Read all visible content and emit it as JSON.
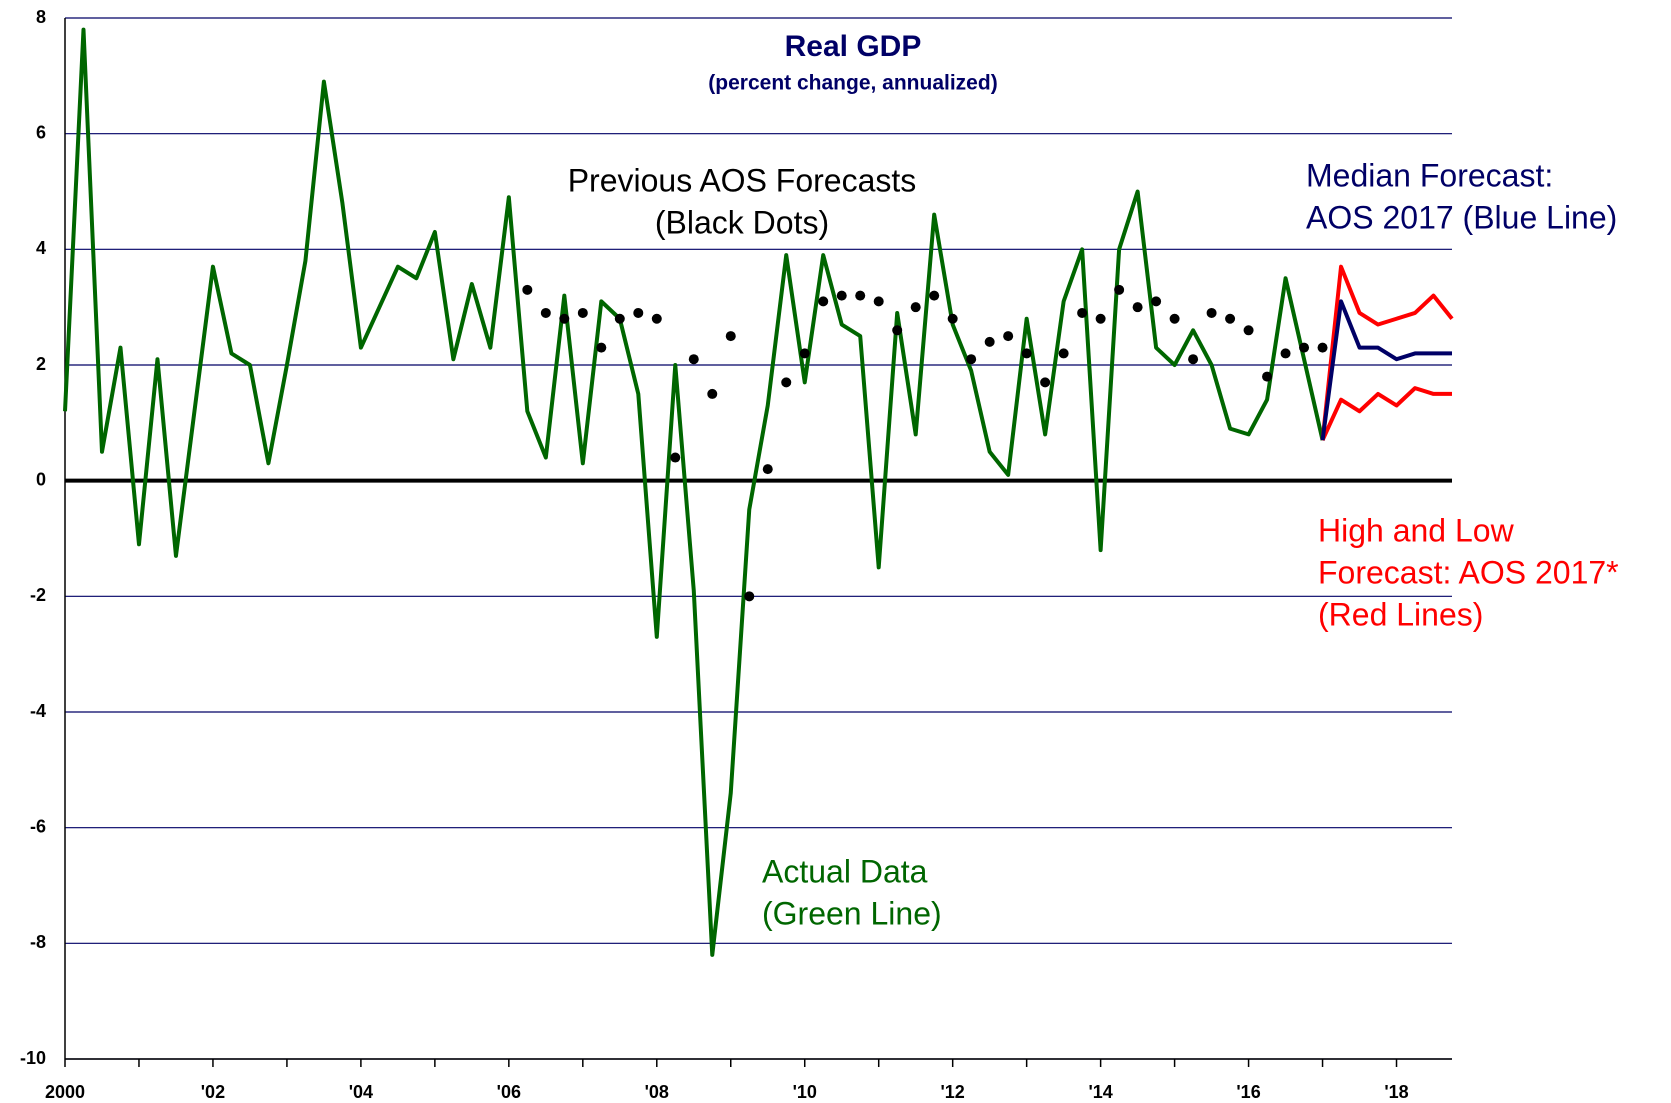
{
  "chart_data": {
    "type": "line",
    "title": "Real GDP",
    "subtitle": "(percent change, annualized)",
    "title_color": "#000066",
    "x": [
      2000,
      2000.25,
      2000.5,
      2000.75,
      2001,
      2001.25,
      2001.5,
      2001.75,
      2002,
      2002.25,
      2002.5,
      2002.75,
      2003,
      2003.25,
      2003.5,
      2003.75,
      2004,
      2004.25,
      2004.5,
      2004.75,
      2005,
      2005.25,
      2005.5,
      2005.75,
      2006,
      2006.25,
      2006.5,
      2006.75,
      2007,
      2007.25,
      2007.5,
      2007.75,
      2008,
      2008.25,
      2008.5,
      2008.75,
      2009,
      2009.25,
      2009.5,
      2009.75,
      2010,
      2010.25,
      2010.5,
      2010.75,
      2011,
      2011.25,
      2011.5,
      2011.75,
      2012,
      2012.25,
      2012.5,
      2012.75,
      2013,
      2013.25,
      2013.5,
      2013.75,
      2014,
      2014.25,
      2014.5,
      2014.75,
      2015,
      2015.25,
      2015.5,
      2015.75,
      2016,
      2016.25,
      2016.5,
      2016.75,
      2017,
      2017.25,
      2017.5,
      2017.75,
      2018,
      2018.25,
      2018.5,
      2018.75
    ],
    "series": [
      {
        "color": "#006600",
        "mode": "lines",
        "values": [
          1.2,
          7.8,
          0.5,
          2.3,
          -1.1,
          2.1,
          -1.3,
          1.2,
          3.7,
          2.2,
          2.0,
          0.3,
          2.0,
          3.8,
          6.9,
          4.8,
          2.3,
          3.0,
          3.7,
          3.5,
          4.3,
          2.1,
          3.4,
          2.3,
          4.9,
          1.2,
          0.4,
          3.2,
          0.3,
          3.1,
          2.8,
          1.5,
          -2.7,
          2.0,
          -1.9,
          -8.2,
          -5.4,
          -0.5,
          1.3,
          3.9,
          1.7,
          3.9,
          2.7,
          2.5,
          -1.5,
          2.9,
          0.8,
          4.6,
          2.7,
          1.9,
          0.5,
          0.1,
          2.8,
          0.8,
          3.1,
          4.0,
          -1.2,
          4.0,
          5.0,
          2.3,
          2.0,
          2.6,
          2.0,
          0.9,
          0.8,
          1.4,
          3.5,
          2.1,
          0.7,
          null,
          null,
          null,
          null,
          null,
          null,
          null
        ]
      },
      {
        "color": "#000000",
        "mode": "markers",
        "values": [
          null,
          null,
          null,
          null,
          null,
          null,
          null,
          null,
          null,
          null,
          null,
          null,
          null,
          null,
          null,
          null,
          null,
          null,
          null,
          null,
          null,
          null,
          null,
          null,
          null,
          3.3,
          2.9,
          2.8,
          2.9,
          2.3,
          2.8,
          2.9,
          2.8,
          0.4,
          2.1,
          1.5,
          2.5,
          -2.0,
          0.2,
          1.7,
          2.2,
          3.1,
          3.2,
          3.2,
          3.1,
          2.6,
          3.0,
          3.2,
          2.8,
          2.1,
          2.4,
          2.5,
          2.2,
          1.7,
          2.2,
          2.9,
          2.8,
          3.3,
          3.0,
          3.1,
          2.8,
          2.1,
          2.9,
          2.8,
          2.6,
          1.8,
          2.2,
          2.3,
          2.3,
          null,
          null,
          null,
          null,
          null,
          null,
          null
        ]
      },
      {
        "color": "#ff0000",
        "mode": "lines",
        "values": [
          null,
          null,
          null,
          null,
          null,
          null,
          null,
          null,
          null,
          null,
          null,
          null,
          null,
          null,
          null,
          null,
          null,
          null,
          null,
          null,
          null,
          null,
          null,
          null,
          null,
          null,
          null,
          null,
          null,
          null,
          null,
          null,
          null,
          null,
          null,
          null,
          null,
          null,
          null,
          null,
          null,
          null,
          null,
          null,
          null,
          null,
          null,
          null,
          null,
          null,
          null,
          null,
          null,
          null,
          null,
          null,
          null,
          null,
          null,
          null,
          null,
          null,
          null,
          null,
          null,
          null,
          null,
          null,
          0.7,
          3.7,
          2.9,
          2.7,
          2.8,
          2.9,
          3.2,
          2.8
        ]
      },
      {
        "color": "#ff0000",
        "mode": "lines",
        "values": [
          null,
          null,
          null,
          null,
          null,
          null,
          null,
          null,
          null,
          null,
          null,
          null,
          null,
          null,
          null,
          null,
          null,
          null,
          null,
          null,
          null,
          null,
          null,
          null,
          null,
          null,
          null,
          null,
          null,
          null,
          null,
          null,
          null,
          null,
          null,
          null,
          null,
          null,
          null,
          null,
          null,
          null,
          null,
          null,
          null,
          null,
          null,
          null,
          null,
          null,
          null,
          null,
          null,
          null,
          null,
          null,
          null,
          null,
          null,
          null,
          null,
          null,
          null,
          null,
          null,
          null,
          null,
          null,
          0.7,
          1.4,
          1.2,
          1.5,
          1.3,
          1.6,
          1.5,
          1.5
        ]
      },
      {
        "color": "#000066",
        "mode": "lines",
        "values": [
          null,
          null,
          null,
          null,
          null,
          null,
          null,
          null,
          null,
          null,
          null,
          null,
          null,
          null,
          null,
          null,
          null,
          null,
          null,
          null,
          null,
          null,
          null,
          null,
          null,
          null,
          null,
          null,
          null,
          null,
          null,
          null,
          null,
          null,
          null,
          null,
          null,
          null,
          null,
          null,
          null,
          null,
          null,
          null,
          null,
          null,
          null,
          null,
          null,
          null,
          null,
          null,
          null,
          null,
          null,
          null,
          null,
          null,
          null,
          null,
          null,
          null,
          null,
          null,
          null,
          null,
          null,
          null,
          0.7,
          3.1,
          2.3,
          2.3,
          2.1,
          2.2,
          2.2,
          2.2
        ]
      }
    ],
    "xlim": [
      2000,
      2018.75
    ],
    "xticks": [
      {
        "value": 2000,
        "label": "2000"
      },
      {
        "value": 2002,
        "label": "'02"
      },
      {
        "value": 2004,
        "label": "'04"
      },
      {
        "value": 2006,
        "label": "'06"
      },
      {
        "value": 2008,
        "label": "'08"
      },
      {
        "value": 2010,
        "label": "'10"
      },
      {
        "value": 2012,
        "label": "'12"
      },
      {
        "value": 2014,
        "label": "'14"
      },
      {
        "value": 2016,
        "label": "'16"
      },
      {
        "value": 2018,
        "label": "'18"
      }
    ],
    "xminorticks": [
      2001,
      2003,
      2005,
      2007,
      2009,
      2011,
      2013,
      2015,
      2017
    ],
    "ylim": [
      -10,
      8
    ],
    "yticks": [
      -10,
      -8,
      -6,
      -4,
      -2,
      0,
      2,
      4,
      6,
      8
    ],
    "grid": true,
    "grid_color": "#000066",
    "annotations": [
      {
        "lines": [
          "Previous AOS Forecasts",
          "(Black Dots)"
        ],
        "color": "#000000"
      },
      {
        "lines": [
          "Median Forecast:",
          "AOS 2017 (Blue Line)"
        ],
        "color": "#000066"
      },
      {
        "lines": [
          "High and Low",
          "Forecast: AOS 2017*",
          "(Red Lines)"
        ],
        "color": "#ff0000"
      },
      {
        "lines": [
          "Actual Data",
          "(Green Line)"
        ],
        "color": "#006600"
      }
    ]
  }
}
